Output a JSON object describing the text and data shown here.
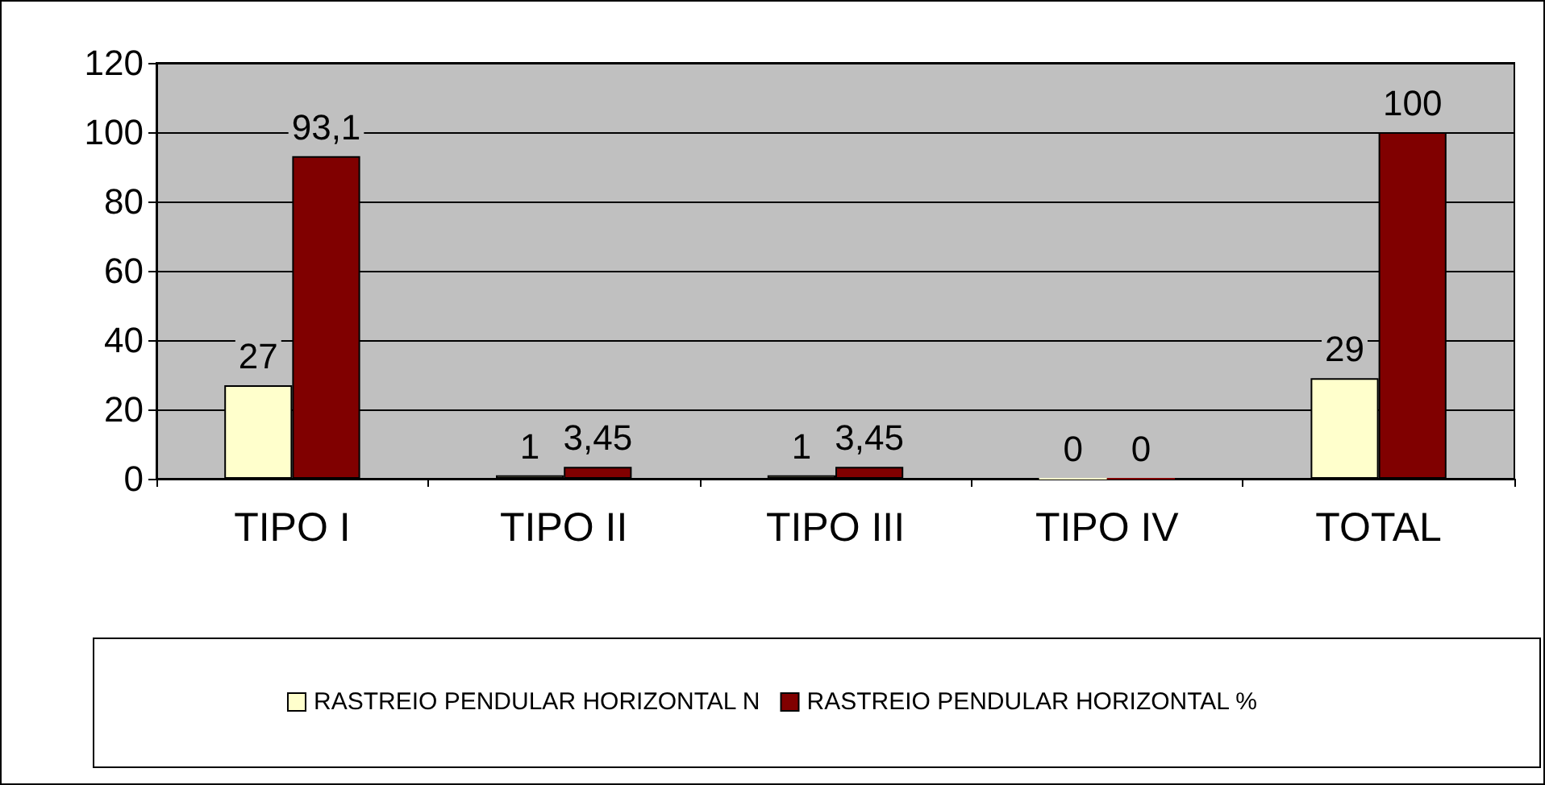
{
  "chart_data": {
    "type": "bar",
    "categories": [
      "TIPO I",
      "TIPO II",
      "TIPO III",
      "TIPO IV",
      "TOTAL"
    ],
    "series": [
      {
        "name": "RASTREIO PENDULAR HORIZONTAL N",
        "color": "#ffffcc",
        "values": [
          27,
          1,
          1,
          0,
          29
        ],
        "value_labels": [
          "27",
          "1",
          "1",
          "0",
          "29"
        ]
      },
      {
        "name": "RASTREIO PENDULAR HORIZONTAL %",
        "color": "#800000",
        "values": [
          93.1,
          3.45,
          3.45,
          0,
          100
        ],
        "value_labels": [
          "93,1",
          "3,45",
          "3,45",
          "0",
          "100"
        ]
      }
    ],
    "ylim": [
      0,
      120
    ],
    "yticks": [
      0,
      20,
      40,
      60,
      80,
      100,
      120
    ],
    "grid": "y",
    "legend": "bottom"
  }
}
